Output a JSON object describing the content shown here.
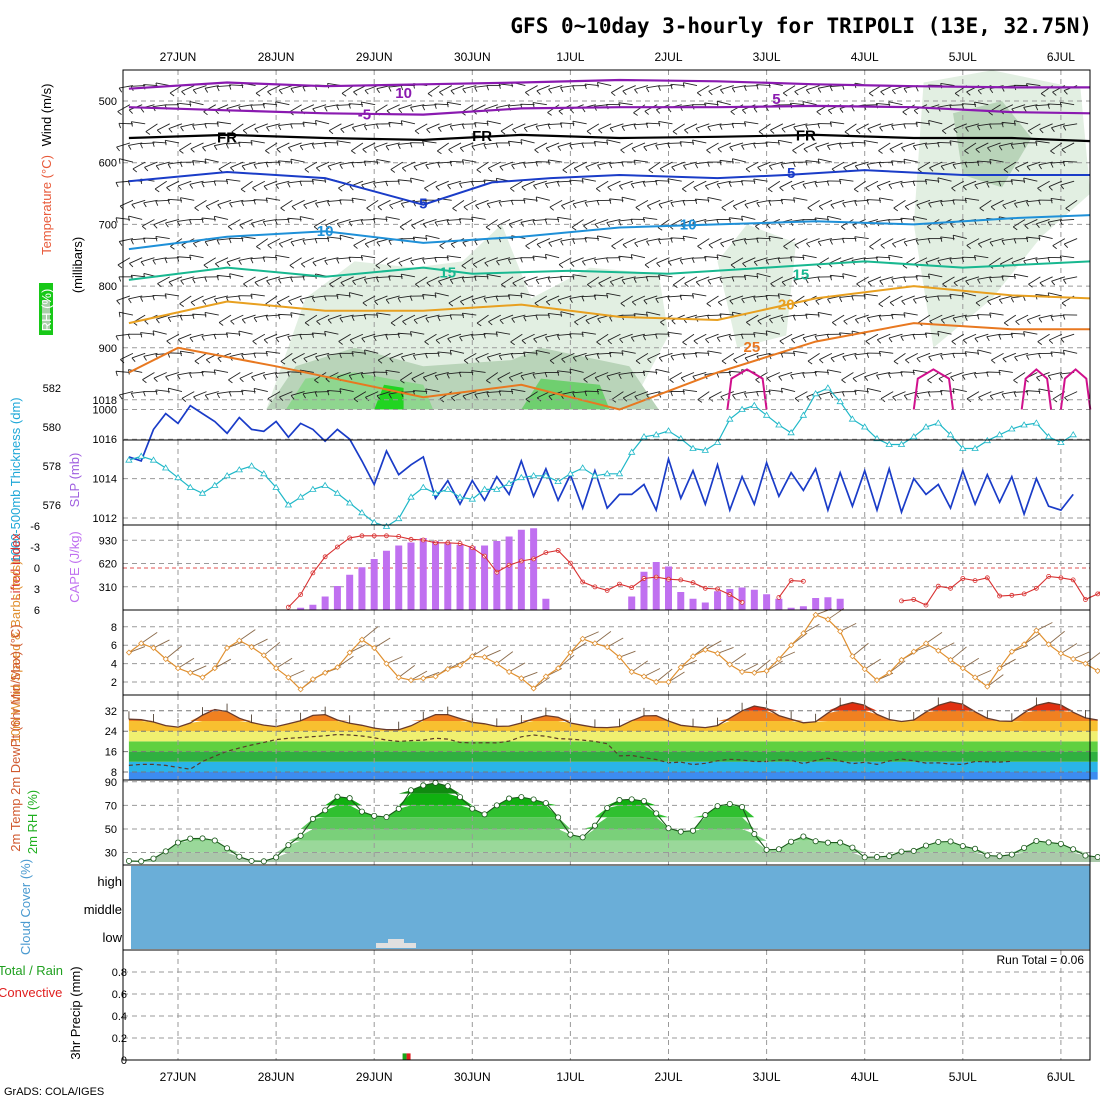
{
  "title": "GFS 0~10day 3-hourly for TRIPOLI (13E, 32.75N)",
  "credit": "GrADS: COLA/IGES",
  "dates": [
    "27JUN",
    "28JUN",
    "29JUN",
    "30JUN",
    "1JUL",
    "2JUL",
    "3JUL",
    "4JUL",
    "5JUL",
    "6JUL"
  ],
  "colors": {
    "wind_purple": "#8a1ab0",
    "freezing": "#000000",
    "blue_dark": "#1a3cc8",
    "blue_light": "#1e90d8",
    "teal": "#18b890",
    "orange_light": "#e8a020",
    "orange": "#e87820",
    "magenta": "#d0108c",
    "slp": "#1a3cc8",
    "thickness": "#20b8c8",
    "lifted": "#d83030",
    "cape": "#c070f0",
    "wind10": "#e09030",
    "cloud": "#6aaed8",
    "rh_green": "#18c818"
  },
  "chart_data": [
    {
      "type": "heatmap",
      "name": "upper-air",
      "labels": {
        "rh": "RH (%)",
        "temp": "Temperature (°C)",
        "wind": "Wind (m/s)",
        "axis": "(millibars)"
      },
      "ylim": [
        1000,
        450
      ],
      "y_ticks": [
        500,
        600,
        700,
        800,
        900,
        1000
      ],
      "contour_labels": [
        {
          "text": "10",
          "color": "wind_purple",
          "day": 2.3,
          "p": 487
        },
        {
          "text": "-5",
          "color": "wind_purple",
          "day": 1.9,
          "p": 522
        },
        {
          "text": "FR",
          "color": "freezing",
          "day": 0.5,
          "p": 559
        },
        {
          "text": "FR",
          "color": "freezing",
          "day": 3.1,
          "p": 557
        },
        {
          "text": "FR",
          "color": "freezing",
          "day": 6.4,
          "p": 556
        },
        {
          "text": "5",
          "color": "wind_purple",
          "day": 6.1,
          "p": 497
        },
        {
          "text": "5",
          "color": "blue_dark",
          "day": 2.5,
          "p": 666
        },
        {
          "text": "5",
          "color": "blue_dark",
          "day": 6.25,
          "p": 617
        },
        {
          "text": "10",
          "color": "blue_light",
          "day": 1.5,
          "p": 711
        },
        {
          "text": "10",
          "color": "blue_light",
          "day": 5.2,
          "p": 700
        },
        {
          "text": "15",
          "color": "teal",
          "day": 2.75,
          "p": 778
        },
        {
          "text": "15",
          "color": "teal",
          "day": 6.35,
          "p": 781
        },
        {
          "text": "20",
          "color": "orange_light",
          "day": 6.2,
          "p": 830
        },
        {
          "text": "25",
          "color": "orange",
          "day": 5.85,
          "p": 899
        }
      ]
    },
    {
      "type": "line",
      "name": "SLP and thickness",
      "ylabel_left": "1000-500mb Thickness (dm)",
      "ylabel_right": "SLP (mb)",
      "left_ticks": [
        576,
        578,
        580,
        582
      ],
      "right_ticks": [
        1012,
        1014,
        1016,
        1018
      ],
      "ylim_left": [
        575,
        582.5
      ],
      "ylim_right": [
        1011.5,
        1018.5
      ],
      "series": [
        {
          "name": "SLP",
          "axis": "right",
          "values": [
            1015.1,
            1014.9,
            1016.5,
            1017.3,
            1016.8,
            1017.7,
            1017.3,
            1016.9,
            1016.3,
            1017.1,
            1016.5,
            1016.4,
            1016.9,
            1016.1,
            1016.8,
            1016.5,
            1015.9,
            1016.5,
            1016.0,
            1014.9,
            1013.7,
            1015.4,
            1014.2,
            1014.7,
            1015.1,
            1013.0,
            1013.9,
            1012.7,
            1013.9,
            1012.9,
            1014.1,
            1013.2,
            1014.9,
            1013.1,
            1014.5,
            1012.9,
            1014.2,
            1012.5,
            1014.4,
            1012.5,
            1013.2,
            1013.2,
            1013.7,
            1012.4,
            1015.0,
            1013.0,
            1014.4,
            1012.7,
            1014.7,
            1012.4,
            1014.1,
            1012.7,
            1014.8,
            1013.1,
            1014.3,
            1013.4,
            1014.5,
            1012.4,
            1014.3,
            1012.6,
            1014.4,
            1012.4,
            1014.5,
            1012.3,
            1014.0,
            1013.2,
            1013.7,
            1012.5,
            1014.4,
            1012.7,
            1014.2,
            1012.8,
            1014.1,
            1012.2,
            1014.0,
            1012.6,
            1012.4,
            1013.2
          ]
        },
        {
          "name": "Thickness",
          "axis": "left",
          "values": [
            578.3,
            578.5,
            578.3,
            577.9,
            577.4,
            576.9,
            576.6,
            577.0,
            577.5,
            577.8,
            578.0,
            577.6,
            576.9,
            576.0,
            576.4,
            576.8,
            577.0,
            576.6,
            576.1,
            575.6,
            575.1,
            574.9,
            575.3,
            576.4,
            576.9,
            576.6,
            576.8,
            576.4,
            576.3,
            576.8,
            576.8,
            577.1,
            577.4,
            577.5,
            577.5,
            577.2,
            577.6,
            577.9,
            577.5,
            577.6,
            577.6,
            578.7,
            579.5,
            579.6,
            579.8,
            579.4,
            578.9,
            578.8,
            579.2,
            580.4,
            580.9,
            581.1,
            580.6,
            580.1,
            579.7,
            580.6,
            581.7,
            582.0,
            581.3,
            580.4,
            580.0,
            579.4,
            579.1,
            579.1,
            579.5,
            580.0,
            580.2,
            579.6,
            578.9,
            578.9,
            579.3,
            579.6,
            579.9,
            580.1,
            580.2,
            579.5,
            579.2,
            579.6
          ]
        }
      ]
    },
    {
      "type": "bar",
      "name": "Lifted index and CAPE",
      "ylabel_left": "Lifted Index",
      "ylabel_right": "CAPE (J/kg)",
      "left_ticks": [
        "-6",
        "-3",
        "0",
        "3",
        "6"
      ],
      "right_ticks": [
        310,
        620,
        930
      ],
      "series": [
        {
          "name": "Lifted Index",
          "values": [
            null,
            null,
            null,
            null,
            null,
            null,
            null,
            null,
            null,
            null,
            null,
            null,
            null,
            5.6,
            3.8,
            0.7,
            -1.6,
            -3.0,
            -4.3,
            -4.6,
            -4.6,
            -4.6,
            -4.5,
            -4.1,
            -4.0,
            -3.6,
            -3.6,
            -3.5,
            -2.9,
            -1.7,
            0.6,
            -0.4,
            -1.0,
            -1.3,
            -2.2,
            -2.5,
            -0.7,
            2.0,
            2.7,
            3.2,
            2.3,
            2.8,
            1.5,
            1.3,
            1.6,
            1.7,
            2.1,
            2.9,
            3.0,
            3.8,
            4.9,
            null,
            null,
            4.2,
            1.8,
            1.9,
            null,
            null,
            null,
            null,
            null,
            null,
            null,
            4.7,
            4.5,
            5.3,
            2.6,
            2.9,
            1.5,
            1.8,
            1.4,
            4.0,
            3.9,
            3.7,
            2.9,
            1.2,
            1.4,
            1.7,
            4.5,
            3.7,
            2.2,
            2.6,
            1.8,
            1.5,
            1.8,
            3.5,
            3.2,
            3.3
          ]
        },
        {
          "name": "CAPE",
          "values": [
            0,
            0,
            0,
            0,
            0,
            0,
            0,
            0,
            0,
            0,
            0,
            0,
            0,
            0,
            30,
            70,
            180,
            320,
            470,
            570,
            680,
            790,
            860,
            900,
            960,
            920,
            890,
            870,
            850,
            860,
            920,
            980,
            1070,
            1090,
            150,
            0,
            0,
            0,
            0,
            0,
            0,
            180,
            510,
            640,
            580,
            240,
            150,
            100,
            250,
            280,
            300,
            270,
            210,
            150,
            30,
            50,
            160,
            170,
            150,
            0,
            0,
            0,
            0,
            0,
            0,
            0,
            0,
            0,
            0,
            0,
            0,
            0,
            0,
            0,
            0,
            0,
            0,
            0,
            0,
            0,
            0,
            0,
            0,
            0,
            0,
            0,
            0,
            0
          ]
        }
      ]
    },
    {
      "type": "line",
      "name": "10m wind",
      "ylabel": "10m Wind Speed & Barbs (m/s)",
      "ylim": [
        0.5,
        9.5
      ],
      "y_ticks": [
        2,
        4,
        6,
        8
      ],
      "values": [
        5.2,
        6.2,
        5.7,
        4.5,
        3.5,
        3.0,
        2.5,
        3.5,
        5.7,
        6.5,
        5.8,
        4.9,
        3.5,
        2.5,
        1.2,
        2.3,
        3.0,
        3.6,
        5.2,
        6.6,
        5.7,
        4.0,
        2.5,
        2.2,
        2.4,
        2.6,
        3.4,
        3.8,
        4.8,
        4.7,
        4.0,
        3.1,
        2.4,
        1.3,
        2.6,
        3.5,
        5.2,
        6.7,
        6.2,
        5.8,
        4.7,
        3.1,
        2.6,
        2.0,
        2.0,
        3.6,
        4.8,
        5.5,
        5.1,
        3.9,
        3.1,
        3.0,
        3.2,
        4.5,
        6.0,
        7.3,
        9.3,
        8.8,
        7.5,
        4.8,
        3.4,
        2.2,
        3.0,
        4.4,
        5.3,
        6.2,
        5.4,
        4.4,
        3.5,
        2.5,
        1.5,
        3.5,
        5.3,
        6.1,
        7.6,
        6.1,
        5.1,
        4.5,
        4.0,
        3.2,
        3.5,
        5.0,
        6.1,
        5.3,
        4.6,
        3.5,
        2.3,
        1.9,
        2.7
      ]
    },
    {
      "type": "area",
      "name": "2m temperature",
      "ylabel": "2m Temp 2m DewPt (6hr Min/Max) (°C)",
      "ylim": [
        5,
        36
      ],
      "y_ticks": [
        8,
        16,
        24,
        32
      ],
      "temp": [
        28.7,
        28.5,
        27.6,
        26.2,
        25.6,
        27.2,
        30.3,
        32.5,
        31.7,
        29.1,
        27.4,
        26.4,
        25.8,
        26.9,
        28.1,
        30.2,
        30.5,
        28.4,
        27.1,
        26.3,
        25.2,
        24.6,
        24.6,
        26.1,
        28.5,
        30.5,
        30.5,
        29.0,
        27.5,
        26.9,
        25.9,
        26.0,
        27.2,
        28.9,
        30.1,
        29.5,
        27.2,
        26.3,
        25.5,
        25.4,
        25.8,
        28.1,
        30.0,
        30.1,
        28.0,
        26.3,
        25.8,
        25.4,
        26.2,
        29.1,
        32.0,
        33.9,
        33.0,
        30.1,
        28.7,
        27.3,
        27.7,
        31.1,
        34.0,
        35.2,
        34.2,
        30.6,
        28.6,
        27.8,
        28.4,
        31.5,
        34.1,
        35.5,
        34.6,
        31.6,
        29.1,
        28.0,
        27.9,
        31.2,
        34.1,
        35.2,
        34.3,
        31.4,
        29.2,
        28.4
      ],
      "dewpoint": [
        10.6,
        11.0,
        11.0,
        10.6,
        9.8,
        9.1,
        12.1,
        14.2,
        16.1,
        17.4,
        18.6,
        19.6,
        20.7,
        21.2,
        21.5,
        21.9,
        22.2,
        22.7,
        22.5,
        22.1,
        21.4,
        20.5,
        20.0,
        20.3,
        20.5,
        21.2,
        20.9,
        19.6,
        19.4,
        19.5,
        19.4,
        20.1,
        21.8,
        22.5,
        22.0,
        21.1,
        20.9,
        20.5,
        20.0,
        19.1,
        14.3,
        14.5,
        13.6,
        12.9,
        11.6,
        11.9,
        10.9,
        11.4,
        12.4,
        13.0,
        12.7,
        12.1,
        12.1,
        12.7,
        12.6,
        11.3,
        12.5,
        13.4,
        12.3,
        11.3,
        11.8,
        11.0,
        12.3,
        13.1,
        12.4,
        11.5,
        11.6,
        11.1,
        11.0,
        12.1,
        12.0,
        11.9,
        12.2
      ]
    },
    {
      "type": "area",
      "name": "2m RH",
      "ylabel": "2m RH (%)",
      "ylim": [
        22,
        92
      ],
      "y_ticks": [
        30,
        50,
        70,
        90
      ],
      "values": [
        22.9,
        22.6,
        24.9,
        31.0,
        38.5,
        41.8,
        42.0,
        40.2,
        33.7,
        26.5,
        22.9,
        22.6,
        25.9,
        36.3,
        44.2,
        58.5,
        65.8,
        77.3,
        76.1,
        64.7,
        61.1,
        60.1,
        67.1,
        82.8,
        86.9,
        89.1,
        86.3,
        77.0,
        67.2,
        62.4,
        70.0,
        75.8,
        77.0,
        75.0,
        71.9,
        59.8,
        45.2,
        42.9,
        52.8,
        67.8,
        74.5,
        75.1,
        73.6,
        63.2,
        50.6,
        47.7,
        48.5,
        61.8,
        69.4,
        71.2,
        68.6,
        45.7,
        32.3,
        32.8,
        39.2,
        43.6,
        39.6,
        38.4,
        38.5,
        34.2,
        26.0,
        26.2,
        27.0,
        30.8,
        31.4,
        35.9,
        39.0,
        39.4,
        35.5,
        33.2,
        27.5,
        26.9,
        28.3,
        34.0,
        39.8,
        38.6,
        37.4,
        32.8,
        27.5,
        26.2,
        30.3,
        39.7,
        41.6,
        35.0
      ]
    },
    {
      "type": "heatmap",
      "name": "cloud cover",
      "ylabel": "Cloud Cover (%)",
      "levels": [
        "high",
        "middle",
        "low"
      ],
      "note": "low cloud near 29JUN 09Z"
    },
    {
      "type": "bar",
      "name": "precipitation",
      "ylabel": "3hr Precip (mm)",
      "legend": "Total / Rain Convective",
      "run_total_label": "Run Total = 0.06",
      "ylim": [
        0,
        1.0
      ],
      "y_ticks": [
        0,
        0.2,
        0.4,
        0.6,
        0.8
      ],
      "bars": [
        {
          "date_offset_days": 2.33,
          "total": 0.06,
          "convective": 0.06
        }
      ]
    }
  ]
}
